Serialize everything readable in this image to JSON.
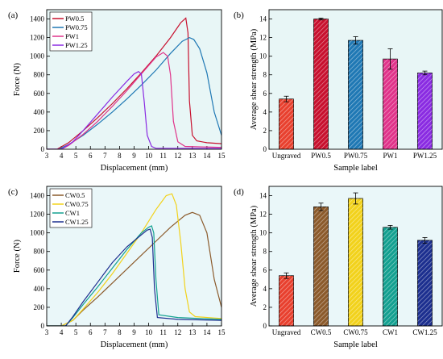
{
  "colors": {
    "bg_ab": "#e8f6f6",
    "bg_cd": "#eaf7f9",
    "PW0.5": "#c8102e",
    "PW0.75": "#1f78b4",
    "PW1": "#e0338a",
    "PW1.25": "#8a2be2",
    "CW0.5": "#8b5a2b",
    "CW0.75": "#f2d21b",
    "CW1": "#13a090",
    "CW1.25": "#1c2f8f",
    "Ungraved": "#e8402e"
  },
  "chart_data": [
    {
      "type": "line",
      "panel_label": "(a)",
      "xlabel": "Displacement (mm)",
      "ylabel": "Force (N)",
      "xlim": [
        3,
        15
      ],
      "ylim": [
        0,
        1500
      ],
      "xticks": [
        3,
        4,
        5,
        6,
        7,
        8,
        9,
        10,
        11,
        12,
        13,
        14,
        15
      ],
      "yticks": [
        0,
        200,
        400,
        600,
        800,
        1000,
        1200,
        1400
      ],
      "grid": false,
      "legend_position": "top-left",
      "series": [
        {
          "name": "PW0.5",
          "x": [
            3.0,
            3.7,
            4.5,
            5.5,
            6.5,
            7.5,
            8.5,
            9.5,
            10.5,
            11.5,
            12.2,
            12.55,
            12.7,
            12.8,
            13.0,
            13.3,
            14.0,
            15.0
          ],
          "y": [
            0,
            0,
            70,
            200,
            340,
            490,
            650,
            820,
            1000,
            1200,
            1360,
            1410,
            1250,
            520,
            150,
            90,
            70,
            60
          ]
        },
        {
          "name": "PW0.75",
          "x": [
            3.0,
            3.8,
            4.5,
            5.5,
            6.5,
            7.5,
            8.5,
            9.5,
            10.5,
            11.5,
            12.3,
            12.8,
            13.1,
            13.5,
            14.0,
            14.5,
            15.0
          ],
          "y": [
            0,
            0,
            50,
            150,
            270,
            400,
            540,
            690,
            850,
            1030,
            1160,
            1200,
            1180,
            1080,
            820,
            400,
            150
          ]
        },
        {
          "name": "PW1",
          "x": [
            3.0,
            4.0,
            4.5,
            5.5,
            6.5,
            7.5,
            8.5,
            9.5,
            10.5,
            11.0,
            11.3,
            11.5,
            11.7,
            12.0,
            12.5,
            15.0
          ],
          "y": [
            0,
            0,
            40,
            160,
            300,
            460,
            630,
            810,
            990,
            1040,
            1000,
            800,
            300,
            80,
            30,
            20
          ]
        },
        {
          "name": "PW1.25",
          "x": [
            3.0,
            4.0,
            4.8,
            5.5,
            6.5,
            7.5,
            8.5,
            9.0,
            9.3,
            9.5,
            9.7,
            9.9,
            10.2,
            10.5,
            15.0
          ],
          "y": [
            0,
            0,
            80,
            200,
            380,
            560,
            730,
            810,
            835,
            810,
            500,
            150,
            30,
            10,
            10
          ]
        }
      ]
    },
    {
      "type": "bar",
      "panel_label": "(b)",
      "xlabel": "Sample label",
      "ylabel": "Average shear strength (MPa)",
      "categories": [
        "Ungraved",
        "PW0.5",
        "PW0.75",
        "PW1",
        "PW1.25"
      ],
      "values": [
        5.4,
        14.0,
        11.7,
        9.7,
        8.2
      ],
      "errors": [
        0.3,
        0.1,
        0.4,
        1.1,
        0.2
      ],
      "ylim": [
        0,
        15
      ],
      "yticks": [
        0,
        2,
        4,
        6,
        8,
        10,
        12,
        14
      ]
    },
    {
      "type": "line",
      "panel_label": "(c)",
      "xlabel": "Displacement (mm)",
      "ylabel": "Force (N)",
      "xlim": [
        3,
        15
      ],
      "ylim": [
        0,
        1500
      ],
      "xticks": [
        3,
        4,
        5,
        6,
        7,
        8,
        9,
        10,
        11,
        12,
        13,
        14,
        15
      ],
      "yticks": [
        0,
        200,
        400,
        600,
        800,
        1000,
        1200,
        1400
      ],
      "grid": false,
      "legend_position": "top-left",
      "series": [
        {
          "name": "CW0.5",
          "x": [
            3.0,
            4.0,
            4.8,
            5.5,
            6.5,
            7.5,
            8.5,
            9.5,
            10.5,
            11.5,
            12.5,
            13.0,
            13.5,
            14.0,
            14.5,
            15.0
          ],
          "y": [
            0,
            0,
            60,
            170,
            310,
            460,
            610,
            760,
            910,
            1060,
            1190,
            1220,
            1190,
            1000,
            500,
            200
          ]
        },
        {
          "name": "CW0.75",
          "x": [
            3.0,
            4.0,
            4.8,
            5.5,
            6.5,
            7.5,
            8.5,
            9.5,
            10.5,
            11.2,
            11.6,
            11.9,
            12.2,
            12.5,
            12.8,
            13.2,
            15.0
          ],
          "y": [
            0,
            0,
            60,
            180,
            360,
            560,
            780,
            1000,
            1250,
            1400,
            1420,
            1300,
            900,
            400,
            150,
            100,
            80
          ]
        },
        {
          "name": "CW1",
          "x": [
            3.0,
            4.3,
            4.8,
            5.5,
            6.5,
            7.5,
            8.5,
            9.5,
            10.0,
            10.2,
            10.35,
            10.5,
            10.7,
            12.0,
            15.0
          ],
          "y": [
            0,
            0,
            90,
            230,
            420,
            620,
            820,
            1000,
            1060,
            1075,
            1000,
            500,
            120,
            90,
            70
          ]
        },
        {
          "name": "CW1.25",
          "x": [
            3.0,
            4.3,
            4.8,
            5.5,
            6.5,
            7.5,
            8.5,
            9.5,
            9.9,
            10.1,
            10.25,
            10.4,
            10.6,
            12.0,
            15.0
          ],
          "y": [
            0,
            0,
            100,
            260,
            470,
            680,
            850,
            980,
            1030,
            1040,
            950,
            400,
            90,
            70,
            60
          ]
        }
      ]
    },
    {
      "type": "bar",
      "panel_label": "(d)",
      "xlabel": "Sample label",
      "ylabel": "Average shear strength (MPa)",
      "categories": [
        "Ungraved",
        "CW0.5",
        "CW0.75",
        "CW1",
        "CW1.25"
      ],
      "values": [
        5.4,
        12.8,
        13.7,
        10.6,
        9.2
      ],
      "errors": [
        0.3,
        0.4,
        0.6,
        0.2,
        0.3
      ],
      "ylim": [
        0,
        15
      ],
      "yticks": [
        0,
        2,
        4,
        6,
        8,
        10,
        12,
        14
      ]
    }
  ]
}
